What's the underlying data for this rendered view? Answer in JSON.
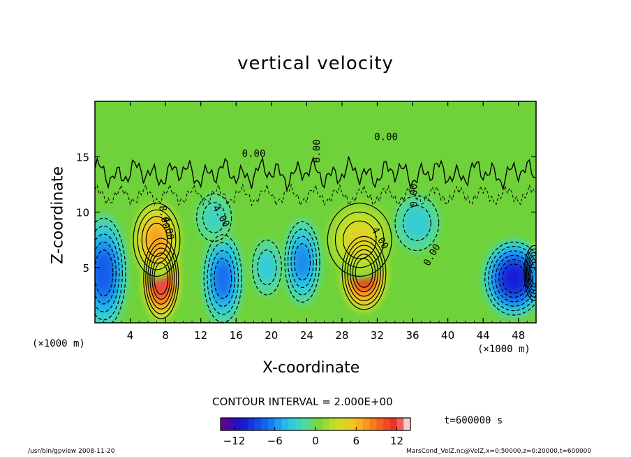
{
  "chart_data": {
    "type": "heatmap",
    "title": "vertical velocity",
    "xlabel": "X-coordinate",
    "ylabel": "Z-coordinate",
    "x_unit": "(×1000 m)",
    "y_unit": "(×1000 m)",
    "xlim": [
      0,
      50
    ],
    "ylim": [
      0,
      20
    ],
    "x_ticks": [
      4,
      8,
      12,
      16,
      20,
      24,
      28,
      32,
      36,
      40,
      44,
      48
    ],
    "y_ticks": [
      5,
      10,
      15
    ],
    "contour_interval_text": "CONTOUR INTERVAL = 2.000E+00",
    "contour_labels": [
      "0.00",
      "0.00",
      "0.00",
      "0.00",
      "4.00",
      "4.00",
      "8.00",
      "4.00",
      "0.00"
    ],
    "colorbar": {
      "range": [
        -14,
        14
      ],
      "ticks": [
        "-12",
        "-6",
        "0",
        "6",
        "12"
      ]
    },
    "time_text": "t=600000 s",
    "cells": [
      {
        "x": 7.5,
        "z": 4.0,
        "value": 14,
        "sx": 1.2,
        "sz": 2.2
      },
      {
        "x": 7.0,
        "z": 7.5,
        "value": 8,
        "sx": 1.6,
        "sz": 2.0
      },
      {
        "x": 30.5,
        "z": 4.5,
        "value": 13,
        "sx": 1.5,
        "sz": 2.0
      },
      {
        "x": 30.0,
        "z": 7.5,
        "value": 5,
        "sx": 2.2,
        "sz": 2.0
      },
      {
        "x": 49.8,
        "z": 4.5,
        "value": 11,
        "sx": 0.7,
        "sz": 1.5
      },
      {
        "x": 1.0,
        "z": 4.5,
        "value": -9,
        "sx": 1.5,
        "sz": 3.0
      },
      {
        "x": 14.5,
        "z": 4.0,
        "value": -8,
        "sx": 1.3,
        "sz": 2.4
      },
      {
        "x": 23.5,
        "z": 5.5,
        "value": -7,
        "sx": 1.2,
        "sz": 2.2
      },
      {
        "x": 19.5,
        "z": 5.0,
        "value": -4,
        "sx": 1.0,
        "sz": 1.5
      },
      {
        "x": 47.5,
        "z": 4.0,
        "value": -12,
        "sx": 2.0,
        "sz": 2.0
      },
      {
        "x": 36.5,
        "z": 9.0,
        "value": -4,
        "sx": 1.5,
        "sz": 1.5
      },
      {
        "x": 13.5,
        "z": 9.5,
        "value": -3,
        "sx": 1.2,
        "sz": 1.3
      }
    ]
  },
  "footer": {
    "left": "/usr/bin/gpview   2008-11-20",
    "right": "MarsCond_VelZ.nc@VelZ,x=0:50000,z=0:20000,t=600000"
  }
}
